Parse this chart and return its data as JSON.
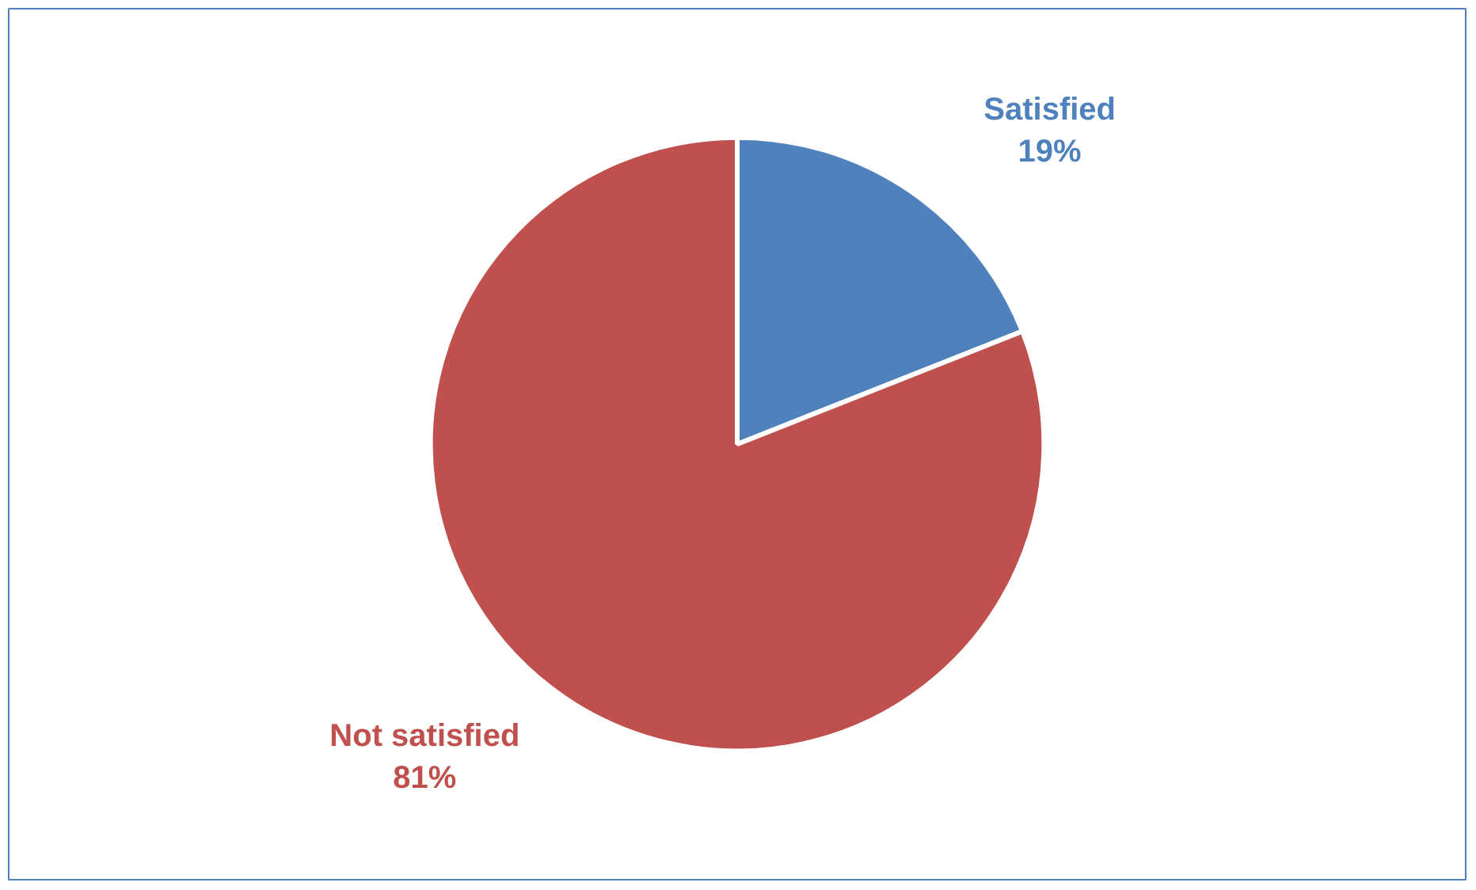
{
  "chart_data": {
    "type": "pie",
    "categories": [
      "Satisfied",
      "Not satisfied"
    ],
    "values": [
      19,
      81
    ],
    "colors": [
      "#4f81bd",
      "#c0504d"
    ],
    "value_labels": [
      "19%",
      "81%"
    ]
  }
}
